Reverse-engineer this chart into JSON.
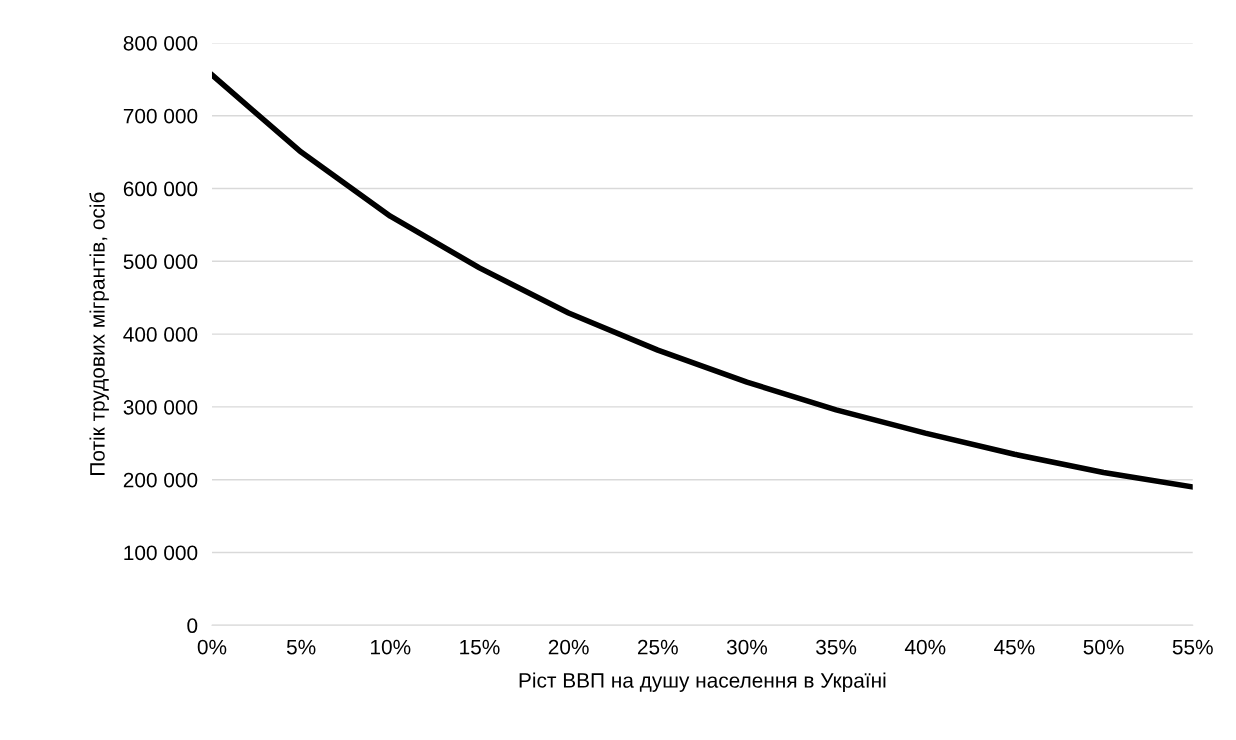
{
  "chart_data": {
    "type": "line",
    "xlabel": "Ріст ВВП на душу населення в Україні",
    "ylabel": "Потік трудових мігрантів, осіб",
    "categories": [
      "0%",
      "5%",
      "10%",
      "15%",
      "20%",
      "25%",
      "30%",
      "35%",
      "40%",
      "45%",
      "50%",
      "55%"
    ],
    "series": [
      {
        "color": "#000000",
        "values": [
          756000,
          650000,
          562000,
          491000,
          429000,
          378000,
          334000,
          296000,
          264000,
          235000,
          210000,
          190000
        ]
      }
    ],
    "ylim": [
      0,
      800000
    ],
    "yticks": [
      {
        "value": 0,
        "label": "0"
      },
      {
        "value": 100000,
        "label": "100 000"
      },
      {
        "value": 200000,
        "label": "200 000"
      },
      {
        "value": 300000,
        "label": "300 000"
      },
      {
        "value": 400000,
        "label": "400 000"
      },
      {
        "value": 500000,
        "label": "500 000"
      },
      {
        "value": 600000,
        "label": "600 000"
      },
      {
        "value": 700000,
        "label": "700 000"
      },
      {
        "value": 800000,
        "label": "800 000"
      }
    ],
    "grid": "y",
    "marker": "none",
    "line_style": "solid"
  }
}
